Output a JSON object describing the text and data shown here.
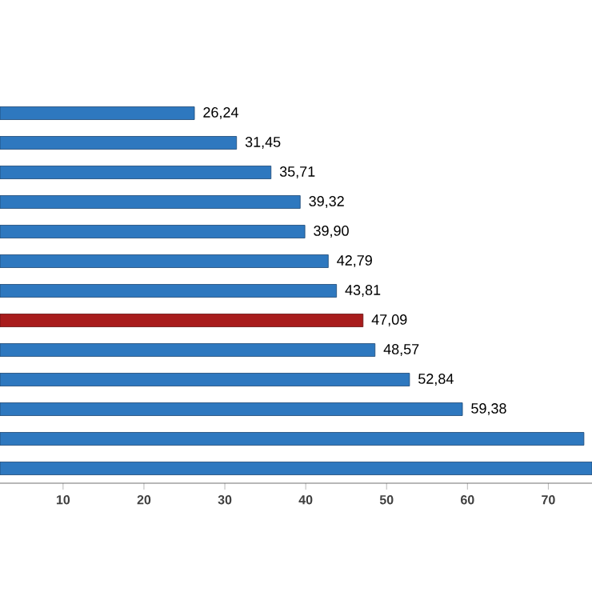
{
  "chart_data": {
    "type": "bar",
    "orientation": "horizontal",
    "categories": [
      null,
      null,
      null,
      null,
      null,
      null,
      null,
      null,
      null,
      null,
      null,
      null,
      null
    ],
    "values": [
      26.24,
      31.45,
      35.71,
      39.32,
      39.9,
      42.79,
      43.81,
      47.09,
      48.57,
      52.84,
      59.38,
      74.4,
      75.4
    ],
    "value_labels": [
      "26,24",
      "31,45",
      "35,71",
      "39,32",
      "39,90",
      "42,79",
      "43,81",
      "47,09",
      "48,57",
      "52,84",
      "59,38",
      null,
      null
    ],
    "colors": [
      "#2e78bf",
      "#2e78bf",
      "#2e78bf",
      "#2e78bf",
      "#2e78bf",
      "#2e78bf",
      "#2e78bf",
      "#a81c1c",
      "#2e78bf",
      "#2e78bf",
      "#2e78bf",
      "#2e78bf",
      "#2e78bf"
    ],
    "xlim": [
      2.2,
      75.4
    ],
    "xticks": [
      10,
      20,
      30,
      40,
      50,
      60,
      70
    ]
  }
}
